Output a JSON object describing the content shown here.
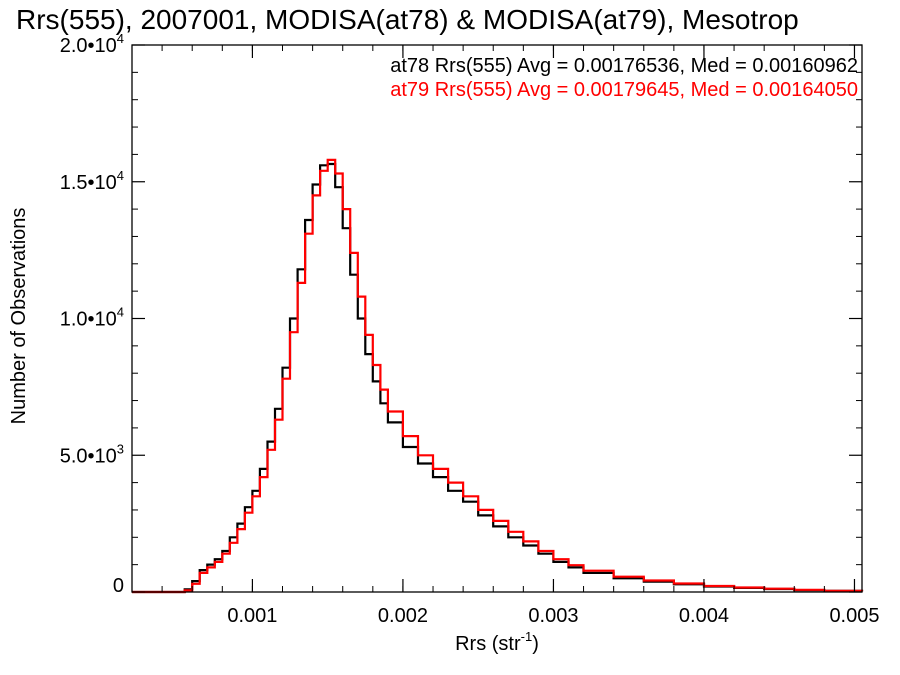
{
  "chart_data": {
    "type": "line",
    "title": "Rrs(555), 2007001, MODISA(at78) & MODISA(at79), Mesotrop",
    "xlabel": "Rrs (str",
    "xlabel_sup": "-1",
    "xlabel_close": ")",
    "ylabel": "Number of Observations",
    "xlim": [
      0.0002,
      0.00505
    ],
    "ylim": [
      0,
      20000
    ],
    "x_ticks": [
      {
        "value": 0.001,
        "label": "0.001"
      },
      {
        "value": 0.002,
        "label": "0.002"
      },
      {
        "value": 0.003,
        "label": "0.003"
      },
      {
        "value": 0.004,
        "label": "0.004"
      },
      {
        "value": 0.005,
        "label": "0.005"
      }
    ],
    "y_ticks": [
      {
        "value": 0,
        "mant": "0",
        "exp": ""
      },
      {
        "value": 5000,
        "mant": "5.0•10",
        "exp": "3"
      },
      {
        "value": 10000,
        "mant": "1.0•10",
        "exp": "4"
      },
      {
        "value": 15000,
        "mant": "1.5•10",
        "exp": "4"
      },
      {
        "value": 20000,
        "mant": "2.0•10",
        "exp": "4"
      }
    ],
    "grid": false,
    "legend_position": "top-right",
    "series": [
      {
        "name": "at78 Rrs(555) Avg = 0.00176536, Med = 0.00160962",
        "color": "#000000",
        "x": [
          0.0002,
          0.0005,
          0.00055,
          0.0006,
          0.00065,
          0.0007,
          0.00075,
          0.0008,
          0.00085,
          0.0009,
          0.00095,
          0.001,
          0.00105,
          0.0011,
          0.00115,
          0.0012,
          0.00125,
          0.0013,
          0.00135,
          0.0014,
          0.00145,
          0.0015,
          0.00155,
          0.0016,
          0.00165,
          0.0017,
          0.00175,
          0.0018,
          0.00185,
          0.0019,
          0.002,
          0.0021,
          0.0022,
          0.0023,
          0.0024,
          0.0025,
          0.0026,
          0.0027,
          0.0028,
          0.0029,
          0.003,
          0.0031,
          0.0032,
          0.0034,
          0.0036,
          0.0038,
          0.004,
          0.0042,
          0.0044,
          0.0046,
          0.0048,
          0.00505
        ],
        "y": [
          0,
          0,
          100,
          400,
          800,
          1000,
          1200,
          1500,
          2000,
          2500,
          3100,
          3700,
          4500,
          5500,
          6700,
          8200,
          10000,
          11800,
          13600,
          14900,
          15600,
          15650,
          14800,
          13300,
          11600,
          10000,
          8700,
          7700,
          6900,
          6200,
          5300,
          4700,
          4200,
          3700,
          3300,
          2800,
          2400,
          2000,
          1700,
          1400,
          1100,
          900,
          700,
          500,
          380,
          280,
          200,
          150,
          110,
          70,
          40,
          20
        ]
      },
      {
        "name": "at79 Rrs(555) Avg = 0.00179645, Med = 0.00164050",
        "color": "#ff0000",
        "x": [
          0.0002,
          0.0005,
          0.00055,
          0.0006,
          0.00065,
          0.0007,
          0.00075,
          0.0008,
          0.00085,
          0.0009,
          0.00095,
          0.001,
          0.00105,
          0.0011,
          0.00115,
          0.0012,
          0.00125,
          0.0013,
          0.00135,
          0.0014,
          0.00145,
          0.0015,
          0.00155,
          0.0016,
          0.00165,
          0.0017,
          0.00175,
          0.0018,
          0.00185,
          0.0019,
          0.002,
          0.0021,
          0.0022,
          0.0023,
          0.0024,
          0.0025,
          0.0026,
          0.0027,
          0.0028,
          0.0029,
          0.003,
          0.0031,
          0.0032,
          0.0034,
          0.0036,
          0.0038,
          0.004,
          0.0042,
          0.0044,
          0.0046,
          0.0048,
          0.00505
        ],
        "y": [
          0,
          0,
          60,
          300,
          700,
          900,
          1100,
          1400,
          1800,
          2300,
          2900,
          3500,
          4200,
          5200,
          6300,
          7800,
          9500,
          11300,
          13100,
          14500,
          15400,
          15800,
          15300,
          14000,
          12400,
          10800,
          9400,
          8300,
          7400,
          6600,
          5700,
          5000,
          4500,
          4000,
          3500,
          3000,
          2600,
          2200,
          1850,
          1500,
          1200,
          980,
          780,
          560,
          420,
          310,
          220,
          165,
          120,
          80,
          45,
          25
        ]
      }
    ]
  }
}
